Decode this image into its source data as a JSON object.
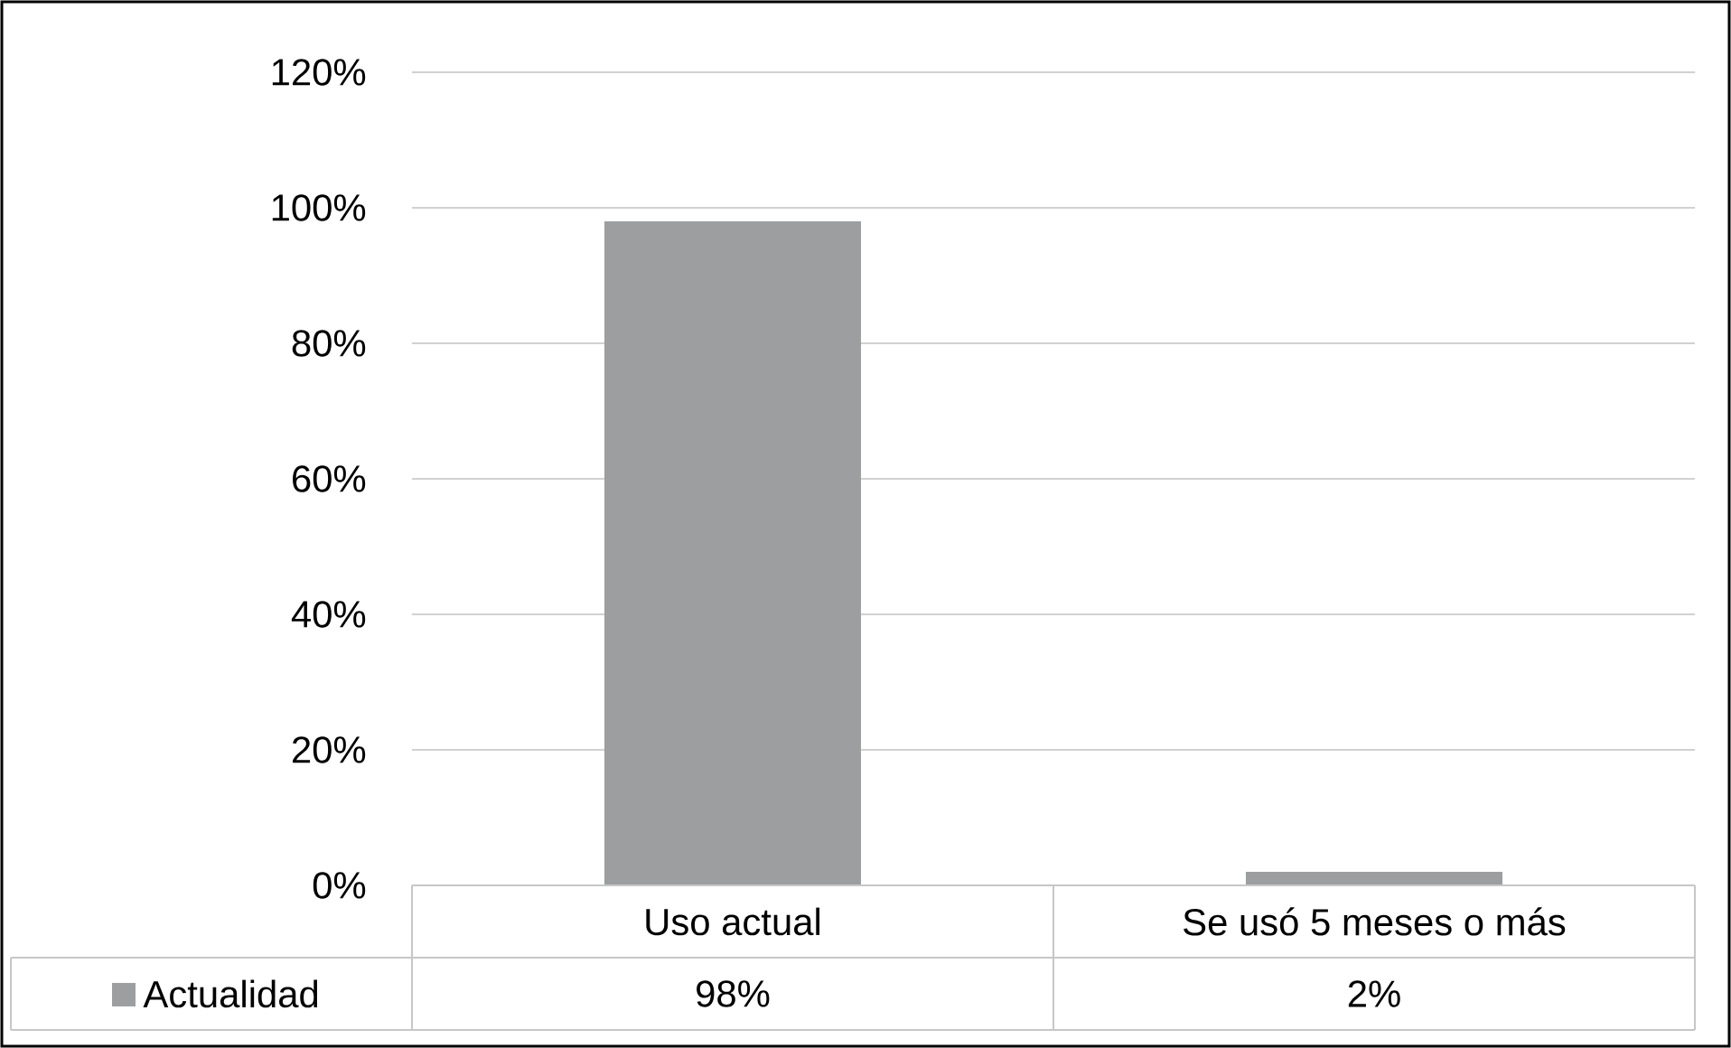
{
  "chart_data": {
    "type": "bar",
    "categories": [
      "Uso actual",
      "Se usó 5 meses o más"
    ],
    "series": [
      {
        "name": "Actualidad",
        "color": "#9c9e9f",
        "values": [
          98,
          2
        ],
        "value_labels": [
          "98%",
          "2%"
        ]
      }
    ],
    "ylim": [
      0,
      120
    ],
    "yticks": [
      {
        "value": 0,
        "label": "0%"
      },
      {
        "value": 20,
        "label": "20%"
      },
      {
        "value": 40,
        "label": "40%"
      },
      {
        "value": 60,
        "label": "60%"
      },
      {
        "value": 80,
        "label": "80%"
      },
      {
        "value": 100,
        "label": "100%"
      },
      {
        "value": 120,
        "label": "120%"
      }
    ],
    "grid": "y",
    "legend": "bottom"
  }
}
